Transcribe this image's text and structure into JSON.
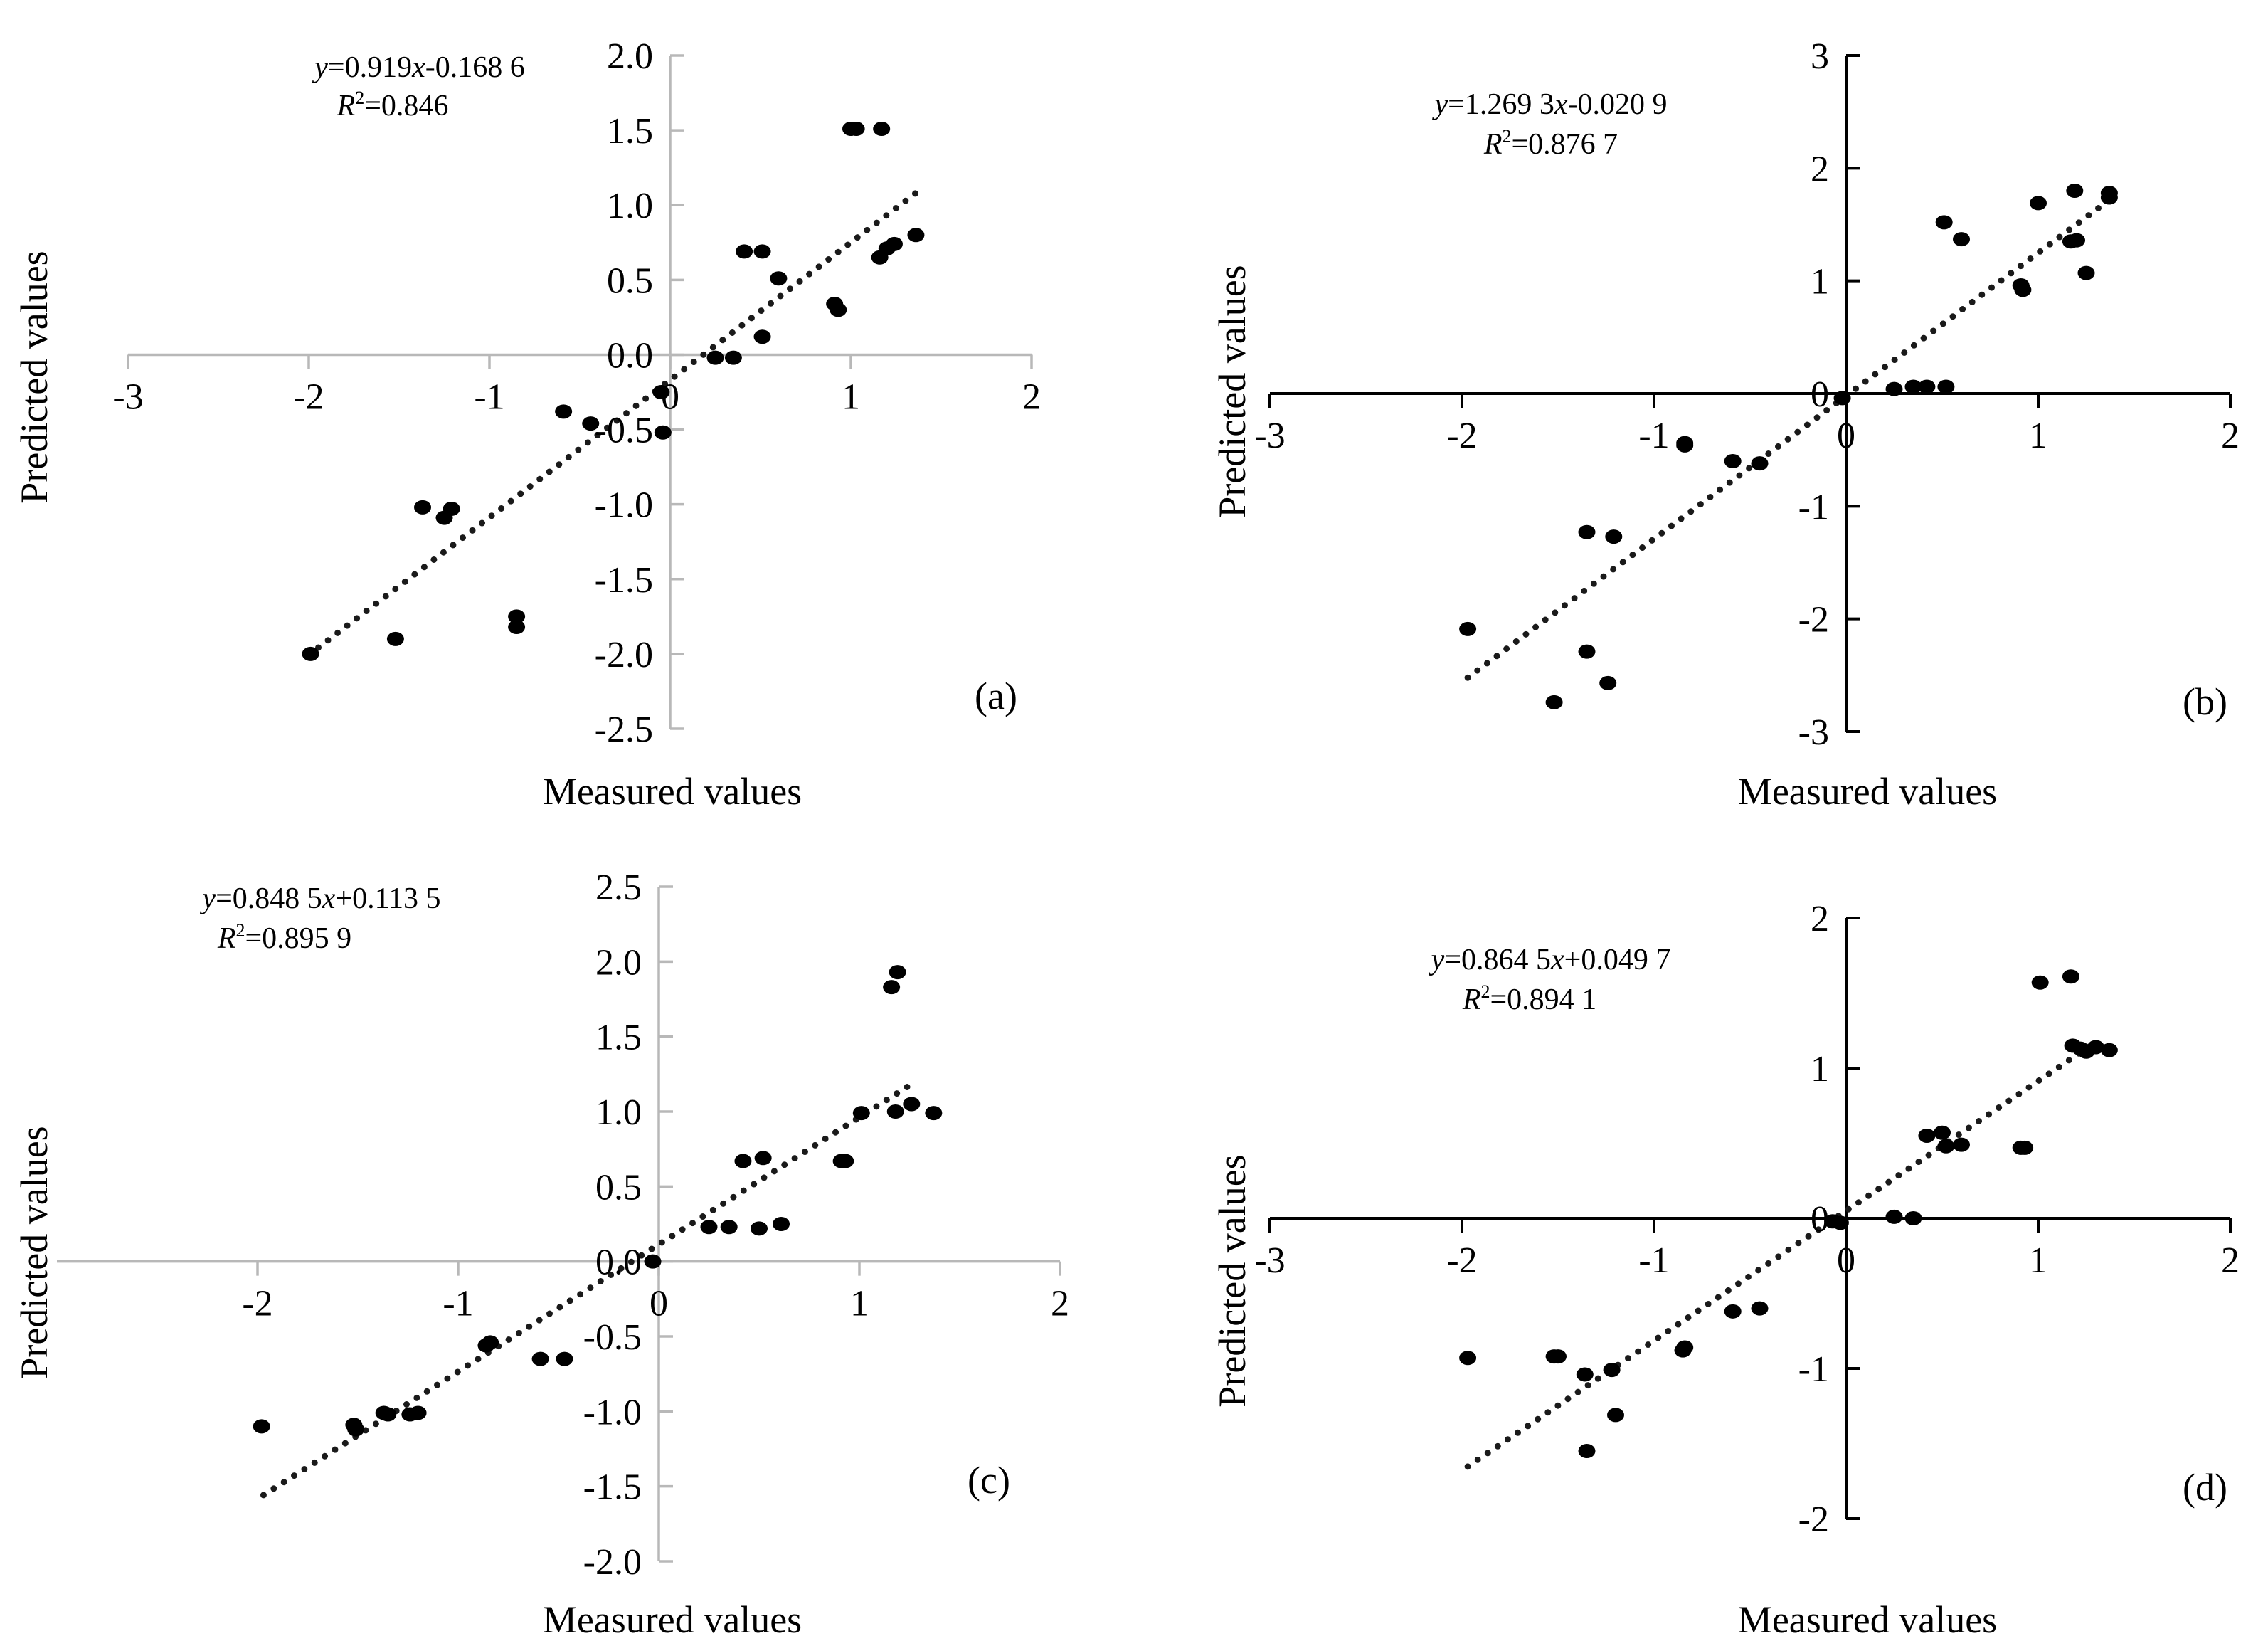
{
  "chart_data": [
    {
      "panel": "(a)",
      "type": "scatter",
      "xlabel": "Measured values",
      "ylabel": "Predicted values",
      "equation": {
        "y": "y",
        "rest1": "=0.919",
        "x": "x",
        "rest2": "-0.168 6"
      },
      "r2": {
        "R": "R",
        "sup": "2",
        "rest": "=0.846"
      },
      "xlim": [
        -3,
        2
      ],
      "ylim": [
        -2.5,
        2.0
      ],
      "xticks": [
        "-3",
        "-2",
        "-1",
        "0",
        "1",
        "2"
      ],
      "yticks": [
        "-2.5",
        "-2.0",
        "-1.5",
        "-1.0",
        "-0.5",
        "0.0",
        "0.5",
        "1.0",
        "1.5",
        "2.0"
      ],
      "xtick_values": [
        -3,
        -2,
        -1,
        0,
        1,
        2
      ],
      "ytick_values": [
        -2.5,
        -2.0,
        -1.5,
        -1.0,
        -0.5,
        0.0,
        0.5,
        1.0,
        1.5,
        2.0
      ],
      "axis_color": "#b8b8b8",
      "trend": {
        "slope": 0.919,
        "intercept": -0.1686,
        "x_range": [
          -2.0,
          1.36
        ]
      },
      "points": [
        [
          -1.99,
          -2.0
        ],
        [
          -1.52,
          -1.9
        ],
        [
          -1.37,
          -1.02
        ],
        [
          -1.25,
          -1.09
        ],
        [
          -1.21,
          -1.03
        ],
        [
          -0.85,
          -1.75
        ],
        [
          -0.85,
          -1.82
        ],
        [
          -0.59,
          -0.38
        ],
        [
          -0.44,
          -0.46
        ],
        [
          -0.05,
          -0.25
        ],
        [
          -0.04,
          -0.52
        ],
        [
          0.25,
          -0.02
        ],
        [
          0.35,
          -0.02
        ],
        [
          0.41,
          0.69
        ],
        [
          0.51,
          0.69
        ],
        [
          0.51,
          0.12
        ],
        [
          0.6,
          0.51
        ],
        [
          0.91,
          0.34
        ],
        [
          0.93,
          0.3
        ],
        [
          1.0,
          1.51
        ],
        [
          1.03,
          1.51
        ],
        [
          1.16,
          0.65
        ],
        [
          1.17,
          1.51
        ],
        [
          1.2,
          0.71
        ],
        [
          1.24,
          0.74
        ],
        [
          1.36,
          0.8
        ]
      ]
    },
    {
      "panel": "(b)",
      "type": "scatter",
      "xlabel": "Measured values",
      "ylabel": "Predicted values",
      "equation": {
        "y": "y",
        "rest1": "=1.269 3",
        "x": "x",
        "rest2": "-0.020 9"
      },
      "r2": {
        "R": "R",
        "sup": "2",
        "rest": "=0.876 7"
      },
      "xlim": [
        -3,
        2
      ],
      "ylim": [
        -3,
        3
      ],
      "xticks": [
        "-3",
        "-2",
        "-1",
        "0",
        "1",
        "2"
      ],
      "yticks": [
        "-3",
        "-2",
        "-1",
        "0",
        "1",
        "2",
        "3"
      ],
      "xtick_values": [
        -3,
        -2,
        -1,
        0,
        1,
        2
      ],
      "ytick_values": [
        -3,
        -2,
        -1,
        0,
        1,
        2,
        3
      ],
      "axis_color": "#000000",
      "trend": {
        "slope": 1.2693,
        "intercept": -0.0209,
        "x_range": [
          -1.97,
          1.38
        ]
      },
      "points": [
        [
          -1.97,
          -2.09
        ],
        [
          -1.52,
          -2.74
        ],
        [
          -1.35,
          -1.23
        ],
        [
          -1.35,
          -2.29
        ],
        [
          -1.24,
          -2.57
        ],
        [
          -1.21,
          -1.27
        ],
        [
          -0.84,
          -0.44
        ],
        [
          -0.84,
          -0.46
        ],
        [
          -0.59,
          -0.6
        ],
        [
          -0.45,
          -0.62
        ],
        [
          -0.02,
          -0.04
        ],
        [
          0.25,
          0.04
        ],
        [
          0.35,
          0.06
        ],
        [
          0.42,
          0.06
        ],
        [
          0.52,
          0.06
        ],
        [
          0.51,
          1.52
        ],
        [
          0.6,
          1.37
        ],
        [
          0.91,
          0.96
        ],
        [
          0.92,
          0.92
        ],
        [
          1.0,
          1.69
        ],
        [
          1.17,
          1.35
        ],
        [
          1.19,
          1.8
        ],
        [
          1.2,
          1.36
        ],
        [
          1.25,
          1.07
        ],
        [
          1.37,
          1.78
        ],
        [
          1.37,
          1.74
        ]
      ]
    },
    {
      "panel": "(c)",
      "type": "scatter",
      "xlabel": "Measured values",
      "ylabel": "Predicted values",
      "equation": {
        "y": "y",
        "rest1": "=0.848 5",
        "x": "x",
        "rest2": "+0.113 5"
      },
      "r2": {
        "R": "R",
        "sup": "2",
        "rest": "=0.895 9"
      },
      "xlim": [
        -3,
        2
      ],
      "ylim": [
        -2.0,
        2.5
      ],
      "xticks": [
        "-2",
        "-1",
        "0",
        "1",
        "2"
      ],
      "yticks": [
        "-2.0",
        "-1.5",
        "-1.0",
        "-0.5",
        "0.0",
        "0.5",
        "1.0",
        "1.5",
        "2.0",
        "2.5"
      ],
      "xtick_values": [
        -2,
        -1,
        0,
        1,
        2
      ],
      "ytick_values": [
        -2.0,
        -1.5,
        -1.0,
        -0.5,
        0.0,
        0.5,
        1.0,
        1.5,
        2.0,
        2.5
      ],
      "axis_color": "#b8b8b8",
      "trend": {
        "slope": 0.8485,
        "intercept": 0.1135,
        "x_range": [
          -1.97,
          1.28
        ]
      },
      "points": [
        [
          -1.98,
          -1.1
        ],
        [
          -1.52,
          -1.09
        ],
        [
          -1.51,
          -1.12
        ],
        [
          -1.37,
          -1.01
        ],
        [
          -1.35,
          -1.02
        ],
        [
          -1.24,
          -1.02
        ],
        [
          -1.2,
          -1.01
        ],
        [
          -0.86,
          -0.56
        ],
        [
          -0.84,
          -0.54
        ],
        [
          -0.59,
          -0.65
        ],
        [
          -0.47,
          -0.65
        ],
        [
          -0.03,
          0.0
        ],
        [
          0.25,
          0.23
        ],
        [
          0.35,
          0.23
        ],
        [
          0.42,
          0.67
        ],
        [
          0.5,
          0.22
        ],
        [
          0.52,
          0.69
        ],
        [
          0.61,
          0.25
        ],
        [
          0.91,
          0.67
        ],
        [
          0.93,
          0.67
        ],
        [
          1.01,
          0.99
        ],
        [
          1.16,
          1.83
        ],
        [
          1.19,
          1.93
        ],
        [
          1.18,
          1.0
        ],
        [
          1.26,
          1.05
        ],
        [
          1.37,
          0.99
        ]
      ]
    },
    {
      "panel": "(d)",
      "type": "scatter",
      "xlabel": "Measured values",
      "ylabel": "Predicted values",
      "equation": {
        "y": "y",
        "rest1": "=0.864 5",
        "x": "x",
        "rest2": "+0.049 7"
      },
      "r2": {
        "R": "R",
        "sup": "2",
        "rest": "=0.894 1"
      },
      "xlim": [
        -3,
        2
      ],
      "ylim": [
        -2,
        2
      ],
      "xticks": [
        "-3",
        "-2",
        "-1",
        "0",
        "1",
        "2"
      ],
      "yticks": [
        "-2",
        "-1",
        "0",
        "1",
        "2"
      ],
      "xtick_values": [
        -3,
        -2,
        -1,
        0,
        1,
        2
      ],
      "ytick_values": [
        -2,
        -1,
        0,
        1,
        2
      ],
      "axis_color": "#000000",
      "trend": {
        "slope": 0.8645,
        "intercept": 0.0497,
        "x_range": [
          -1.97,
          1.28
        ]
      },
      "points": [
        [
          -1.97,
          -0.93
        ],
        [
          -1.52,
          -0.92
        ],
        [
          -1.5,
          -0.92
        ],
        [
          -1.36,
          -1.04
        ],
        [
          -1.35,
          -1.55
        ],
        [
          -1.22,
          -1.01
        ],
        [
          -1.2,
          -1.31
        ],
        [
          -0.84,
          -0.86
        ],
        [
          -0.85,
          -0.88
        ],
        [
          -0.59,
          -0.62
        ],
        [
          -0.45,
          -0.6
        ],
        [
          -0.07,
          -0.02
        ],
        [
          -0.03,
          -0.03
        ],
        [
          0.25,
          0.01
        ],
        [
          0.35,
          0.0
        ],
        [
          0.42,
          0.55
        ],
        [
          0.5,
          0.57
        ],
        [
          0.52,
          0.48
        ],
        [
          0.6,
          0.49
        ],
        [
          0.91,
          0.47
        ],
        [
          0.93,
          0.47
        ],
        [
          1.01,
          1.57
        ],
        [
          1.17,
          1.61
        ],
        [
          1.18,
          1.15
        ],
        [
          1.22,
          1.13
        ],
        [
          1.25,
          1.11
        ],
        [
          1.3,
          1.14
        ],
        [
          1.37,
          1.12
        ]
      ]
    }
  ]
}
